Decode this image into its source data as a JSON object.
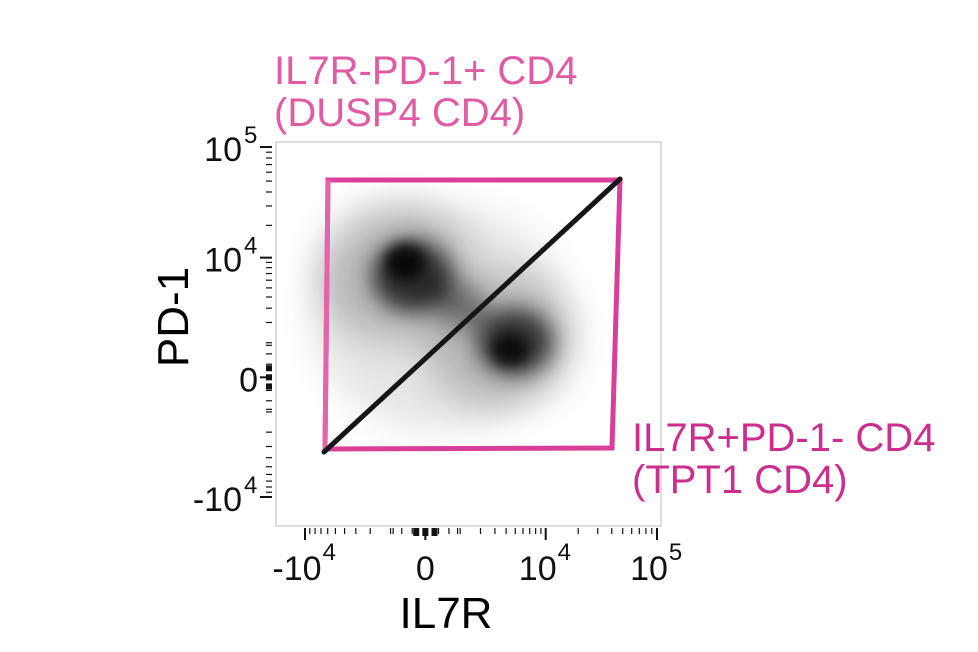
{
  "chart_data": {
    "type": "scatter",
    "subtype": "flow-cytometry density plot with gates",
    "xlabel": "IL7R",
    "ylabel": "PD-1",
    "x_ticks": [
      {
        "value": -10000,
        "base": "-10",
        "exp": "4"
      },
      {
        "value": 0,
        "base": "0",
        "exp": ""
      },
      {
        "value": 10000,
        "base": "10",
        "exp": "4"
      },
      {
        "value": 100000,
        "base": "10",
        "exp": "5"
      }
    ],
    "y_ticks": [
      {
        "value": -10000,
        "base": "-10",
        "exp": "4"
      },
      {
        "value": 0,
        "base": "0",
        "exp": ""
      },
      {
        "value": 10000,
        "base": "10",
        "exp": "4"
      },
      {
        "value": 100000,
        "base": "10",
        "exp": "5"
      }
    ],
    "scale": "biexponential",
    "gates": [
      {
        "name": "IL7R-PD-1+ CD4",
        "alias": "(DUSP4 CD4)",
        "color": "#e05aa4",
        "position": "upper-left"
      },
      {
        "name": "IL7R+PD-1- CD4",
        "alias": "(TPT1 CD4)",
        "color": "#cc2e8e",
        "position": "lower-right"
      }
    ],
    "gate_divider_color": "#1a1a1a",
    "density_color": "#000000",
    "populations": [
      {
        "name": "IL7R-PD-1+ cluster",
        "x_center": 0,
        "y_center": 8000
      },
      {
        "name": "IL7R+PD-1- cluster",
        "x_center": 8000,
        "y_center": 1500
      }
    ]
  }
}
